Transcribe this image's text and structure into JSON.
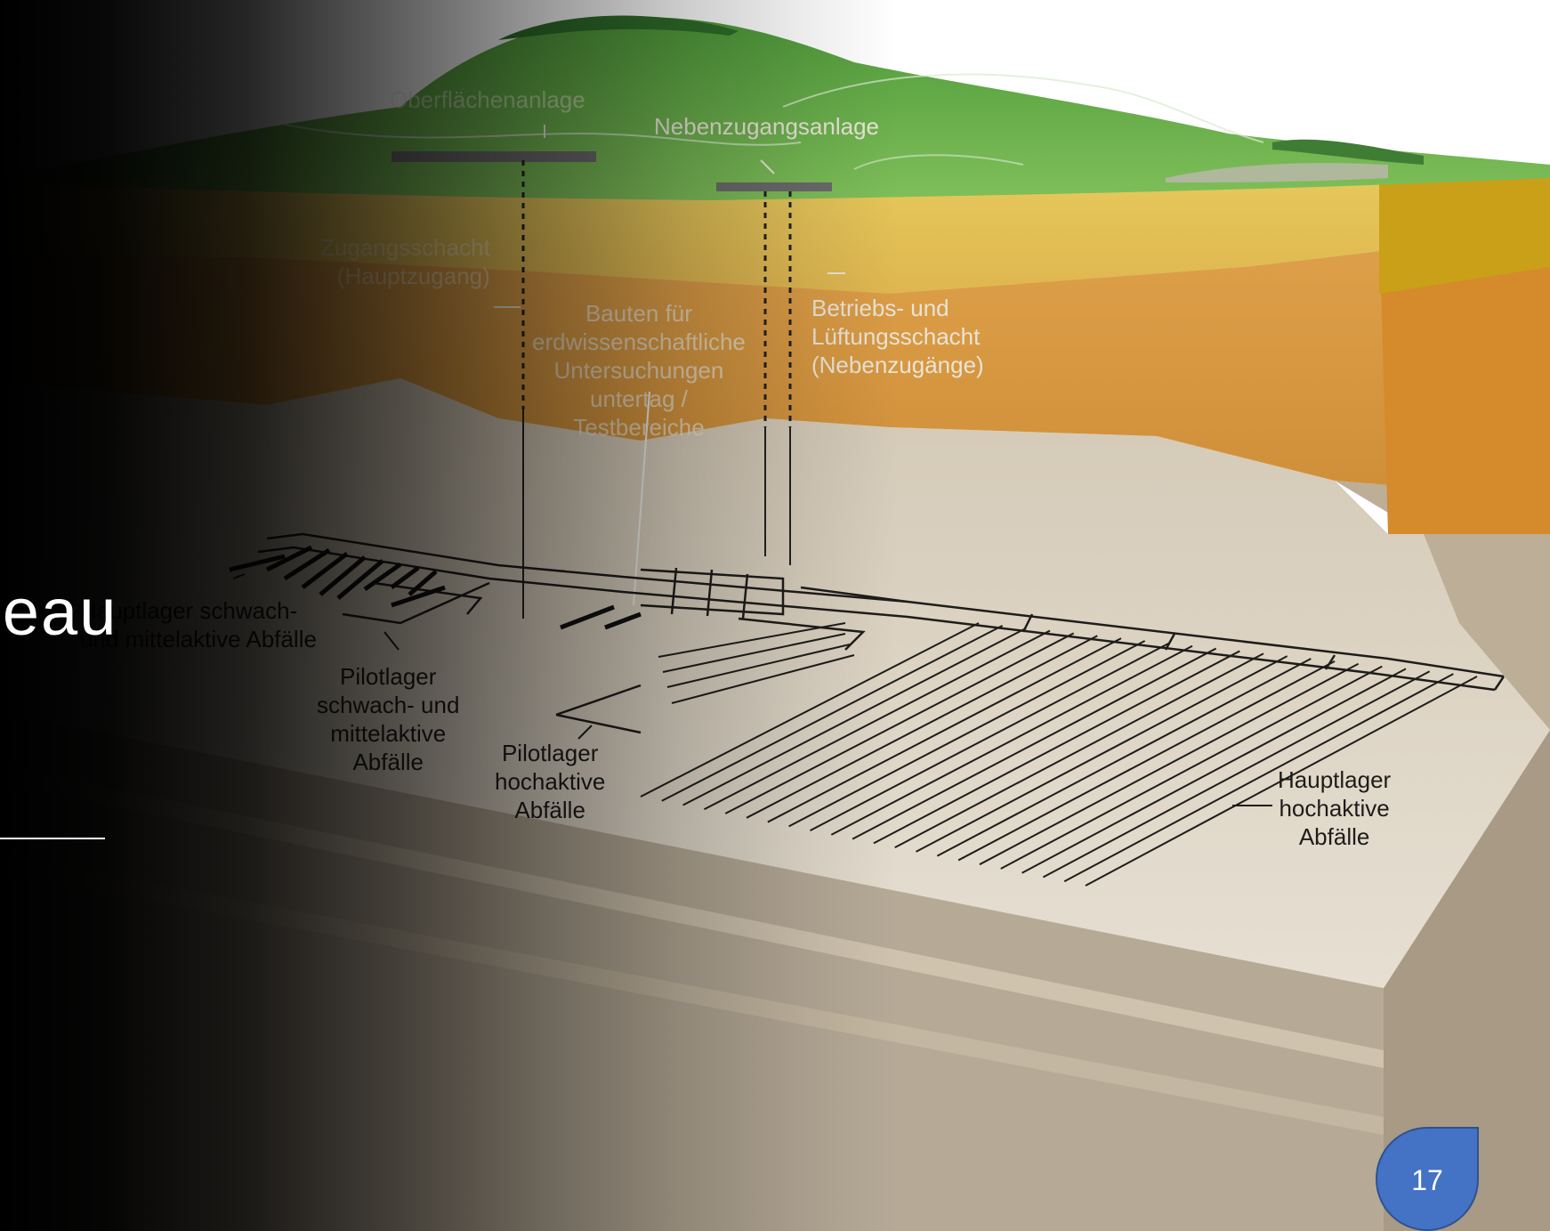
{
  "slide": {
    "title": "eau",
    "page_number": "17"
  },
  "diagram": {
    "labels": {
      "oberflaechenanlage": "Oberflächenanlage",
      "nebenzugangsanlage": "Nebenzugangsanlage",
      "zugangsschacht_1": "Zugangsschacht",
      "zugangsschacht_2": "(Hauptzugang)",
      "bauten_1": "Bauten für",
      "bauten_2": "erdwissenschaftliche",
      "bauten_3": "Untersuchungen",
      "bauten_4": "untertag /",
      "bauten_5": "Testbereiche",
      "betriebs_1": "Betriebs- und",
      "betriebs_2": "Lüftungsschacht",
      "betriebs_3": "(Nebenzugänge)",
      "hauptlager_sma_1": "Hauptlager schwach-",
      "hauptlager_sma_2": "und mittelaktive Abfälle",
      "pilot_sma_1": "Pilotlager",
      "pilot_sma_2": "schwach- und",
      "pilot_sma_3": "mittelaktive",
      "pilot_sma_4": "Abfälle",
      "pilot_haa_1": "Pilotlager",
      "pilot_haa_2": "hochaktive",
      "pilot_haa_3": "Abfälle",
      "hauptlager_haa_1": "Hauptlager",
      "hauptlager_haa_2": "hochaktive",
      "hauptlager_haa_3": "Abfälle"
    },
    "colors": {
      "grass": "#6aa84f",
      "yellow_layer": "#e0c860",
      "orange_layer": "#d9993f",
      "rock_layer": "#cfc4b2",
      "tunnel": "#1f1d1b",
      "page_badge": "#4472c4"
    }
  }
}
